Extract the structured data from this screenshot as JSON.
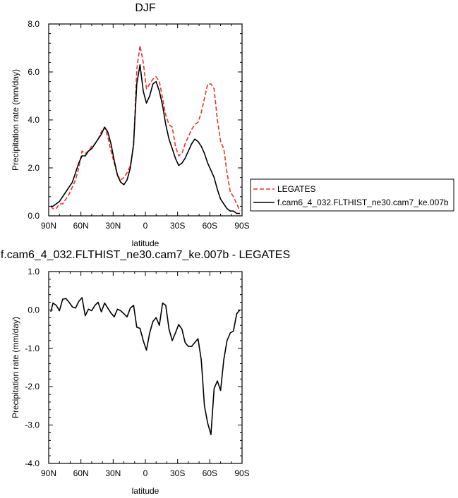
{
  "chart_data": [
    {
      "type": "line",
      "title": "DJF",
      "xlabel": "latitude",
      "ylabel": "Precipitation rate (mm/day)",
      "xlim": [
        90,
        -90
      ],
      "ylim": [
        0,
        8
      ],
      "x_ticks": [
        90,
        60,
        30,
        0,
        -30,
        -60,
        -90
      ],
      "x_tick_labels": [
        "90N",
        "60N",
        "30N",
        "0",
        "30S",
        "60S",
        "90S"
      ],
      "y_ticks": [
        0,
        2,
        4,
        6,
        8
      ],
      "y_tick_labels": [
        "0.0",
        "2.0",
        "4.0",
        "6.0",
        "8.0"
      ],
      "grid": false,
      "legend_position": "outside-right",
      "series": [
        {
          "name": "LEGATES",
          "color": "#e8322b",
          "dash": "dashed",
          "x": [
            88,
            86,
            83,
            80,
            77,
            74,
            71,
            68,
            65,
            62,
            59,
            56,
            53,
            50,
            47,
            44,
            41,
            38,
            35,
            32,
            29,
            26,
            23,
            20,
            17,
            14,
            11,
            8,
            5,
            2,
            -1,
            -4,
            -7,
            -10,
            -13,
            -16,
            -19,
            -22,
            -25,
            -28,
            -31,
            -34,
            -37,
            -40,
            -43,
            -46,
            -49,
            -52,
            -55,
            -58,
            -61,
            -64,
            -67,
            -70,
            -73,
            -76,
            -79,
            -82,
            -85,
            -88
          ],
          "y": [
            0.4,
            0.3,
            0.3,
            0.5,
            0.5,
            0.7,
            0.9,
            1.2,
            1.5,
            2.0,
            2.7,
            2.6,
            2.7,
            2.9,
            3.0,
            3.2,
            3.5,
            3.7,
            3.3,
            2.7,
            2.2,
            1.7,
            1.5,
            1.6,
            1.8,
            2.1,
            2.9,
            6.1,
            7.1,
            6.4,
            5.3,
            5.5,
            5.7,
            5.8,
            5.6,
            4.9,
            4.2,
            3.8,
            3.7,
            2.9,
            2.5,
            2.6,
            3.0,
            3.3,
            3.6,
            3.8,
            3.9,
            4.3,
            4.9,
            5.5,
            5.5,
            5.3,
            4.0,
            3.1,
            2.8,
            1.8,
            1.0,
            0.8,
            0.5,
            0.2
          ]
        },
        {
          "name": "f.cam6_4_032.FLTHIST_ne30.cam7_ke.007b",
          "color": "#000000",
          "dash": "solid",
          "x": [
            88,
            86,
            83,
            80,
            77,
            74,
            71,
            68,
            65,
            62,
            59,
            56,
            53,
            50,
            47,
            44,
            41,
            38,
            35,
            32,
            29,
            26,
            23,
            20,
            17,
            14,
            11,
            8,
            5,
            2,
            -1,
            -4,
            -7,
            -10,
            -13,
            -16,
            -19,
            -22,
            -25,
            -28,
            -31,
            -34,
            -37,
            -40,
            -43,
            -46,
            -49,
            -52,
            -55,
            -58,
            -61,
            -64,
            -67,
            -70,
            -73,
            -76,
            -79,
            -82,
            -85,
            -88
          ],
          "y": [
            0.4,
            0.4,
            0.5,
            0.6,
            0.8,
            1.0,
            1.2,
            1.4,
            1.8,
            2.2,
            2.5,
            2.5,
            2.7,
            2.8,
            3.0,
            3.2,
            3.4,
            3.7,
            3.5,
            3.0,
            2.3,
            1.7,
            1.4,
            1.3,
            1.5,
            2.0,
            3.0,
            5.5,
            6.3,
            5.2,
            4.7,
            5.0,
            5.5,
            5.6,
            5.2,
            4.6,
            3.8,
            3.2,
            2.8,
            2.4,
            2.1,
            2.2,
            2.4,
            2.7,
            3.0,
            3.2,
            3.1,
            2.9,
            2.6,
            2.2,
            1.9,
            1.6,
            1.1,
            0.7,
            0.5,
            0.3,
            0.2,
            0.2,
            0.1,
            0.1
          ]
        }
      ]
    },
    {
      "type": "line",
      "title": "f.cam6_4_032.FLTHIST_ne30.cam7_ke.007b - LEGATES",
      "xlabel": "latitude",
      "ylabel": "Precipitation rate (mm/day)",
      "xlim": [
        90,
        -90
      ],
      "ylim": [
        -4,
        1
      ],
      "x_ticks": [
        90,
        60,
        30,
        0,
        -30,
        -60,
        -90
      ],
      "x_tick_labels": [
        "90N",
        "60N",
        "30N",
        "0",
        "30S",
        "60S",
        "90S"
      ],
      "y_ticks": [
        -4,
        -3,
        -2,
        -1,
        0,
        1
      ],
      "y_tick_labels": [
        "-4.0",
        "-3.0",
        "-2.0",
        "-1.0",
        "0.0",
        "1.0"
      ],
      "grid": false,
      "series": [
        {
          "color": "#000000",
          "dash": "solid",
          "x": [
            88,
            86,
            83,
            80,
            77,
            74,
            71,
            68,
            65,
            62,
            59,
            56,
            53,
            50,
            47,
            44,
            41,
            38,
            35,
            32,
            29,
            26,
            23,
            20,
            17,
            14,
            11,
            8,
            5,
            2,
            -1,
            -4,
            -7,
            -10,
            -13,
            -16,
            -19,
            -22,
            -25,
            -28,
            -31,
            -34,
            -37,
            -40,
            -43,
            -46,
            -49,
            -52,
            -55,
            -58,
            -61,
            -64,
            -67,
            -70,
            -73,
            -76,
            -79,
            -82,
            -85,
            -88
          ],
          "y": [
            -0.05,
            0.18,
            0.12,
            -0.02,
            0.28,
            0.3,
            0.2,
            0.08,
            0.05,
            0.22,
            0.32,
            -0.15,
            0.02,
            -0.02,
            0.12,
            0.2,
            -0.05,
            0.18,
            0.05,
            -0.08,
            -0.18,
            0.02,
            -0.02,
            -0.1,
            -0.18,
            0.05,
            0.12,
            -0.45,
            -0.48,
            -0.8,
            -1.05,
            -0.6,
            -0.3,
            -0.2,
            -0.4,
            0.18,
            0.12,
            -0.5,
            -0.8,
            -0.6,
            -0.38,
            -0.5,
            -0.85,
            -0.95,
            -0.95,
            -0.85,
            -0.75,
            -1.3,
            -2.5,
            -2.95,
            -3.25,
            -2.05,
            -1.85,
            -2.1,
            -1.3,
            -0.8,
            -0.6,
            -0.55,
            -0.1,
            0.0
          ]
        }
      ]
    }
  ]
}
